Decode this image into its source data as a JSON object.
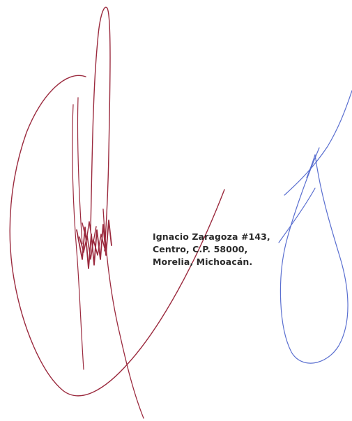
{
  "address": {
    "lines": [
      "Ignacio Zaragoza #143,",
      "Centro, C.P. 58000,",
      "Morelia, Michoacán."
    ]
  },
  "signatures": [
    {
      "name": "red-signature",
      "color": "#9b2a3e"
    },
    {
      "name": "blue-signature",
      "color": "#5a6fd0"
    }
  ]
}
